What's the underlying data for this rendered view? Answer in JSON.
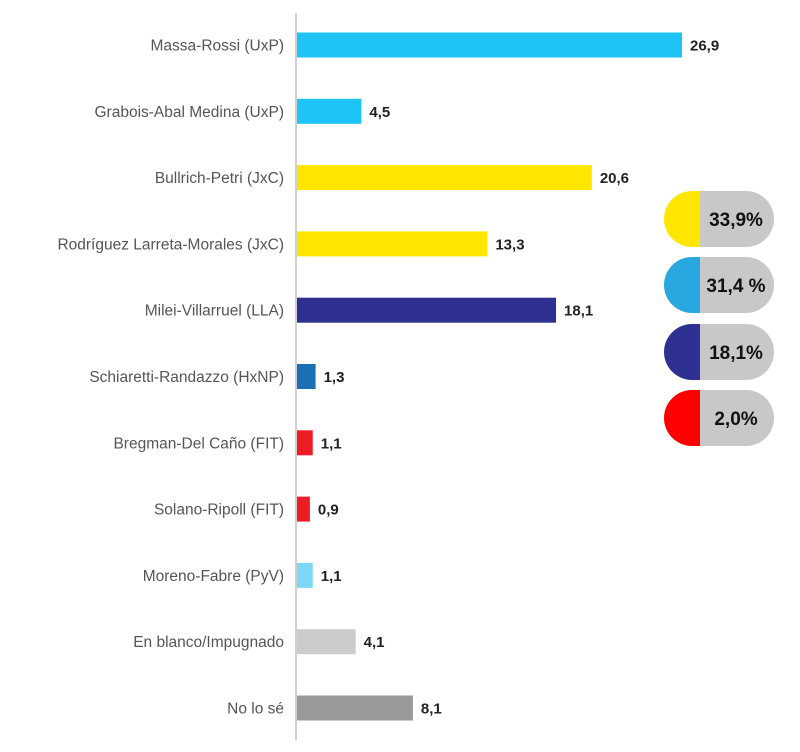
{
  "chart_data": {
    "type": "bar",
    "orientation": "horizontal",
    "title": "",
    "xlabel": "",
    "ylabel": "",
    "grid": false,
    "xlim": [
      0,
      30
    ],
    "categories": [
      "Massa-Rossi (UxP)",
      "Grabois-Abal Medina (UxP)",
      "Bullrich-Petri (JxC)",
      "Rodríguez Larreta-Morales (JxC)",
      "Milei-Villarruel (LLA)",
      "Schiaretti-Randazzo (HxNP)",
      "Bregman-Del Caño (FIT)",
      "Solano-Ripoll (FIT)",
      "Moreno-Fabre (PyV)",
      "En blanco/Impugnado",
      "No lo sé"
    ],
    "values": [
      26.9,
      4.5,
      20.6,
      13.3,
      18.1,
      1.3,
      1.1,
      0.9,
      1.1,
      4.1,
      8.1
    ],
    "value_labels": [
      "26,9",
      "4,5",
      "20,6",
      "13,3",
      "18,1",
      "1,3",
      "1,1",
      "0,9",
      "1,1",
      "4,1",
      "8,1"
    ],
    "bar_colors": [
      "#1ec3f8",
      "#1ec3f8",
      "#ffe600",
      "#ffe600",
      "#2e3192",
      "#1a6fb5",
      "#ee1c25",
      "#ee1c25",
      "#7dd8f8",
      "#cccccc",
      "#999999"
    ],
    "totals_legend": [
      {
        "label": "33,9%",
        "value": 33.9,
        "color": "#ffe600"
      },
      {
        "label": "31,4 %",
        "value": 31.4,
        "color": "#29a8e0"
      },
      {
        "label": "18,1%",
        "value": 18.1,
        "color": "#2e3192"
      },
      {
        "label": "2,0%",
        "value": 2.0,
        "color": "#ff0000"
      }
    ]
  }
}
